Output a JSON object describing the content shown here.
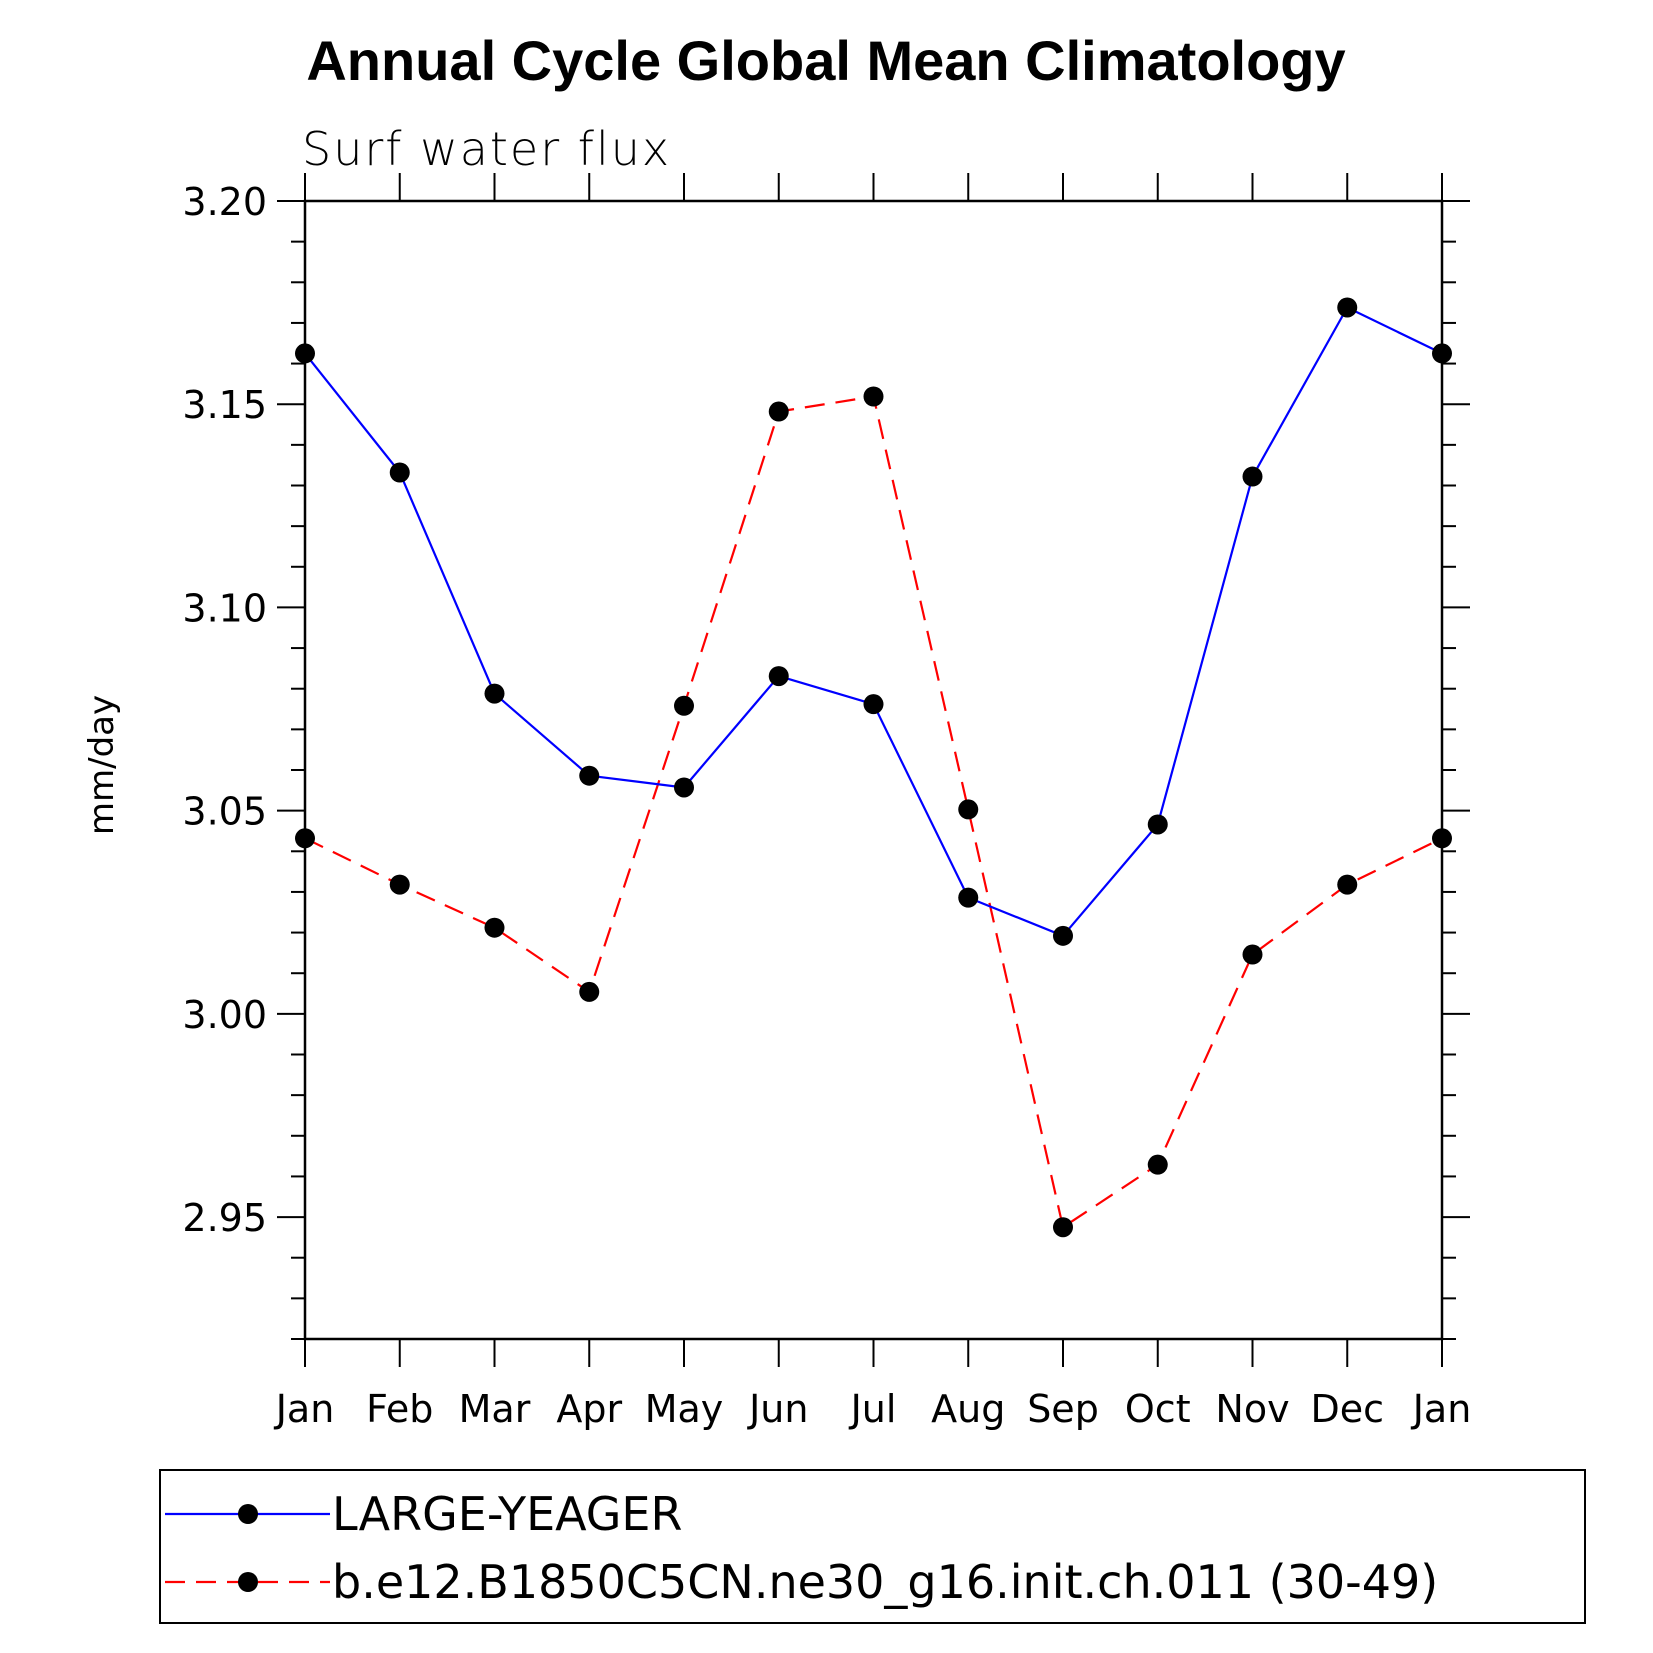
{
  "chart_data": {
    "type": "line",
    "title": "Annual Cycle Global Mean Climatology",
    "subtitle": "Surf water flux",
    "xlabel": "",
    "ylabel": "mm/day",
    "categories": [
      "Jan",
      "Feb",
      "Mar",
      "Apr",
      "May",
      "Jun",
      "Jul",
      "Aug",
      "Sep",
      "Oct",
      "Nov",
      "Dec",
      "Jan"
    ],
    "ylim": [
      2.92,
      3.2
    ],
    "yticks": [
      "3.20",
      "3.15",
      "3.10",
      "3.05",
      "3.00",
      "2.95"
    ],
    "grid": false,
    "legend_position": "bottom",
    "series": [
      {
        "name": "LARGE-YEAGER",
        "color": "#0000ff",
        "line_style": "solid",
        "marker": "filled-circle",
        "values": [
          3.1625,
          3.1332,
          3.0788,
          3.0586,
          3.0557,
          3.0831,
          3.0762,
          3.0286,
          3.0192,
          3.0466,
          3.1322,
          3.1738,
          3.1625
        ]
      },
      {
        "name": "b.e12.B1850C5CN.ne30_g16.init.ch.011 (30-49)",
        "color": "#ff0000",
        "line_style": "dashed",
        "marker": "filled-circle",
        "values": [
          3.0432,
          3.0318,
          3.0212,
          3.0054,
          3.0758,
          3.1482,
          3.1519,
          3.0503,
          2.9475,
          2.9629,
          3.0146,
          3.0318,
          3.0432
        ]
      }
    ]
  }
}
